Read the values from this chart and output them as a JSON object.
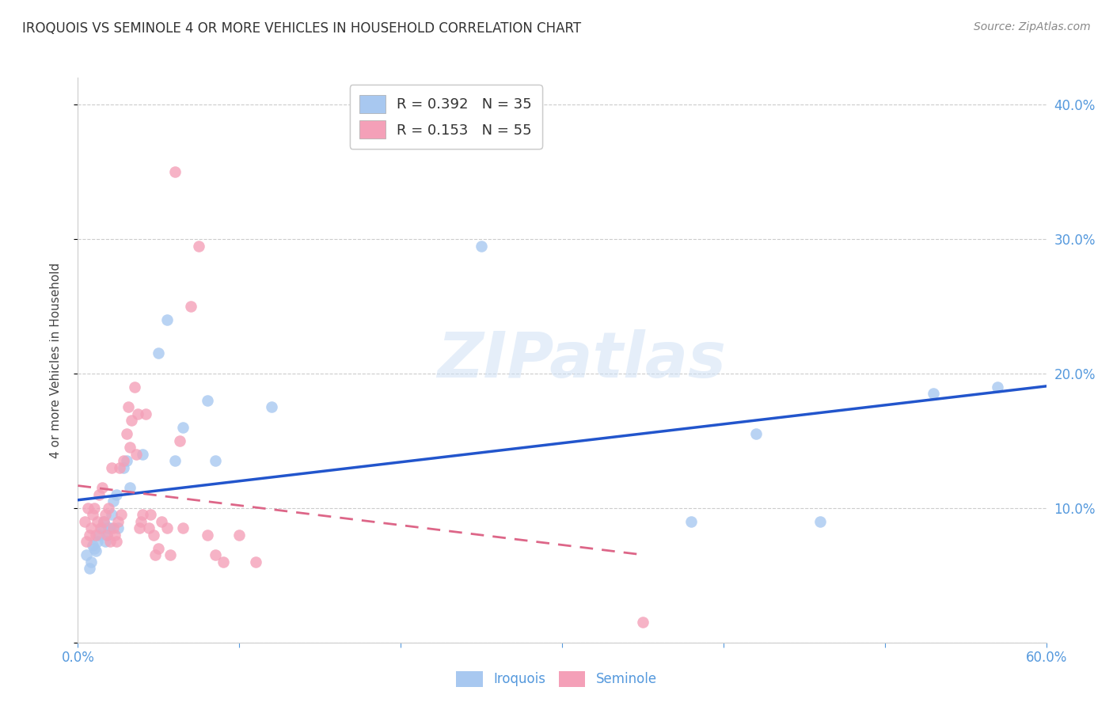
{
  "title": "IROQUOIS VS SEMINOLE 4 OR MORE VEHICLES IN HOUSEHOLD CORRELATION CHART",
  "source": "Source: ZipAtlas.com",
  "ylabel": "4 or more Vehicles in Household",
  "xlim": [
    0.0,
    0.6
  ],
  "ylim": [
    0.0,
    0.42
  ],
  "xticks": [
    0.0,
    0.1,
    0.2,
    0.3,
    0.4,
    0.5,
    0.6
  ],
  "xtick_labels": [
    "0.0%",
    "",
    "",
    "",
    "",
    "",
    "60.0%"
  ],
  "yticks": [
    0.0,
    0.1,
    0.2,
    0.3,
    0.4
  ],
  "right_ytick_labels": [
    "",
    "10.0%",
    "20.0%",
    "30.0%",
    "40.0%"
  ],
  "iroquois_color": "#a8c8f0",
  "seminole_color": "#f4a0b8",
  "iroquois_line_color": "#2255cc",
  "seminole_line_color": "#dd6688",
  "iroquois_R": 0.392,
  "iroquois_N": 35,
  "seminole_R": 0.153,
  "seminole_N": 55,
  "watermark": "ZIPatlas",
  "background_color": "#ffffff",
  "grid_color": "#cccccc",
  "tick_color": "#5599dd",
  "iroquois_x": [
    0.005,
    0.007,
    0.008,
    0.009,
    0.01,
    0.011,
    0.012,
    0.013,
    0.015,
    0.016,
    0.017,
    0.018,
    0.019,
    0.02,
    0.021,
    0.022,
    0.024,
    0.025,
    0.028,
    0.03,
    0.032,
    0.04,
    0.05,
    0.055,
    0.06,
    0.065,
    0.08,
    0.085,
    0.12,
    0.25,
    0.38,
    0.42,
    0.46,
    0.53,
    0.57
  ],
  "iroquois_y": [
    0.065,
    0.055,
    0.06,
    0.072,
    0.07,
    0.068,
    0.075,
    0.08,
    0.085,
    0.09,
    0.075,
    0.08,
    0.085,
    0.085,
    0.095,
    0.105,
    0.11,
    0.085,
    0.13,
    0.135,
    0.115,
    0.14,
    0.215,
    0.24,
    0.135,
    0.16,
    0.18,
    0.135,
    0.175,
    0.295,
    0.09,
    0.155,
    0.09,
    0.185,
    0.19
  ],
  "seminole_x": [
    0.004,
    0.005,
    0.006,
    0.007,
    0.008,
    0.009,
    0.01,
    0.011,
    0.012,
    0.013,
    0.014,
    0.015,
    0.016,
    0.017,
    0.018,
    0.019,
    0.02,
    0.021,
    0.022,
    0.023,
    0.024,
    0.025,
    0.026,
    0.027,
    0.028,
    0.03,
    0.031,
    0.032,
    0.033,
    0.035,
    0.036,
    0.037,
    0.038,
    0.039,
    0.04,
    0.042,
    0.044,
    0.045,
    0.047,
    0.048,
    0.05,
    0.052,
    0.055,
    0.057,
    0.06,
    0.063,
    0.065,
    0.07,
    0.075,
    0.08,
    0.085,
    0.09,
    0.1,
    0.11,
    0.35
  ],
  "seminole_y": [
    0.09,
    0.075,
    0.1,
    0.08,
    0.085,
    0.095,
    0.1,
    0.08,
    0.09,
    0.11,
    0.085,
    0.115,
    0.09,
    0.095,
    0.08,
    0.1,
    0.075,
    0.13,
    0.085,
    0.08,
    0.075,
    0.09,
    0.13,
    0.095,
    0.135,
    0.155,
    0.175,
    0.145,
    0.165,
    0.19,
    0.14,
    0.17,
    0.085,
    0.09,
    0.095,
    0.17,
    0.085,
    0.095,
    0.08,
    0.065,
    0.07,
    0.09,
    0.085,
    0.065,
    0.35,
    0.15,
    0.085,
    0.25,
    0.295,
    0.08,
    0.065,
    0.06,
    0.08,
    0.06,
    0.015
  ]
}
